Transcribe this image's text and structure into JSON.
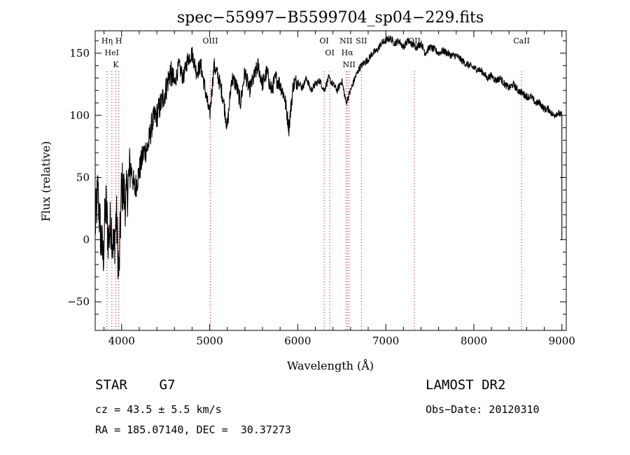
{
  "chart_data": {
    "type": "line",
    "title": "spec−55997−B5599704_sp04−229.fits",
    "xlabel": "Wavelength (Å)",
    "ylabel": "Flux (relative)",
    "xlim": [
      3700,
      9050
    ],
    "ylim": [
      -73,
      168
    ],
    "x_ticks": [
      4000,
      5000,
      6000,
      7000,
      8000,
      9000
    ],
    "y_ticks": [
      -50,
      0,
      50,
      100,
      150
    ],
    "x_tick_labels": [
      "4000",
      "5000",
      "6000",
      "7000",
      "8000",
      "9000"
    ],
    "y_tick_labels": [
      "−50",
      "0",
      "50",
      "100",
      "150"
    ],
    "series": [
      {
        "x": [
          3700,
          3730,
          3760,
          3790,
          3820,
          3850,
          3880,
          3910,
          3940,
          3970,
          4000,
          4050,
          4100,
          4150,
          4200,
          4250,
          4300,
          4350,
          4400,
          4450,
          4500,
          4550,
          4600,
          4650,
          4700,
          4750,
          4800,
          4850,
          4900,
          4950,
          5000,
          5050,
          5100,
          5150,
          5200,
          5250,
          5300,
          5350,
          5400,
          5450,
          5500,
          5550,
          5600,
          5650,
          5700,
          5750,
          5800,
          5850,
          5900,
          5950,
          6000,
          6050,
          6100,
          6150,
          6200,
          6250,
          6300,
          6350,
          6400,
          6450,
          6500,
          6550,
          6600,
          6650,
          6700,
          6750,
          6800,
          6850,
          6900,
          6950,
          7000,
          7050,
          7100,
          7150,
          7200,
          7250,
          7300,
          7350,
          7400,
          7450,
          7500,
          7550,
          7600,
          7650,
          7700,
          7750,
          7800,
          7850,
          7900,
          7950,
          8000,
          8050,
          8100,
          8150,
          8200,
          8250,
          8300,
          8350,
          8400,
          8450,
          8500,
          8550,
          8600,
          8650,
          8700,
          8750,
          8800,
          8850,
          8900,
          8950,
          9000
        ],
        "y": [
          10,
          40,
          5,
          -15,
          30,
          0,
          15,
          -10,
          20,
          -30,
          45,
          30,
          60,
          40,
          55,
          70,
          75,
          95,
          100,
          110,
          120,
          135,
          125,
          140,
          130,
          145,
          150,
          135,
          140,
          120,
          100,
          140,
          130,
          115,
          90,
          130,
          125,
          110,
          135,
          120,
          130,
          140,
          125,
          135,
          120,
          130,
          125,
          115,
          90,
          125,
          128,
          122,
          130,
          120,
          125,
          128,
          120,
          130,
          125,
          120,
          128,
          110,
          120,
          130,
          138,
          142,
          145,
          150,
          152,
          158,
          160,
          162,
          158,
          160,
          155,
          160,
          157,
          155,
          158,
          150,
          155,
          153,
          150,
          152,
          150,
          148,
          148,
          145,
          142,
          140,
          138,
          137,
          135,
          130,
          132,
          128,
          130,
          125,
          122,
          125,
          120,
          118,
          115,
          115,
          110,
          110,
          105,
          105,
          100,
          102,
          100
        ]
      }
    ],
    "lines": [
      {
        "label": "HeI",
        "x": 3889
      },
      {
        "label": "Hη",
        "x": 3835
      },
      {
        "label": "H",
        "x": 3968
      },
      {
        "label": "K",
        "x": 3934
      },
      {
        "label": "OIII",
        "x": 5007
      },
      {
        "label": "OI",
        "x": 6300
      },
      {
        "label": "OI",
        "x": 6364
      },
      {
        "label": "NII",
        "x": 6583
      },
      {
        "label": "NII",
        "x": 6548
      },
      {
        "label": "Hα",
        "x": 6563
      },
      {
        "label": "SII",
        "x": 6724
      },
      {
        "label": "OII",
        "x": 7325
      },
      {
        "label": "CaII",
        "x": 8542
      }
    ],
    "line_color": "#000000",
    "marker_color": "#cc0000",
    "grid": false
  },
  "info": {
    "classification": "STAR    G7",
    "survey": "LAMOST DR2",
    "cz": "cz = 43.5 ± 5.5 km/s",
    "obs_date": "Obs−Date: 20120310",
    "coords": "RA = 185.07140, DEC =  30.37273"
  }
}
